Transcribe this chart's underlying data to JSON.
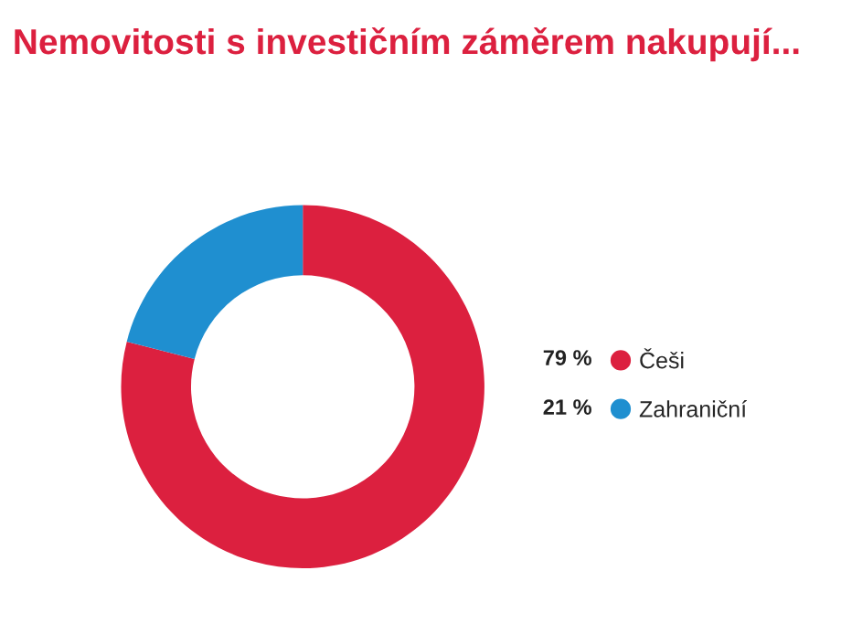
{
  "chart_data": {
    "type": "donut",
    "title": "Nemovitosti s investičním záměrem nakupují...",
    "categories": [
      "Češi",
      "Zahraniční"
    ],
    "values": [
      79,
      21
    ],
    "value_labels": [
      "79 %",
      "21 %"
    ],
    "colors": [
      "#dc203f",
      "#1f8fd0"
    ],
    "legend": "right"
  }
}
